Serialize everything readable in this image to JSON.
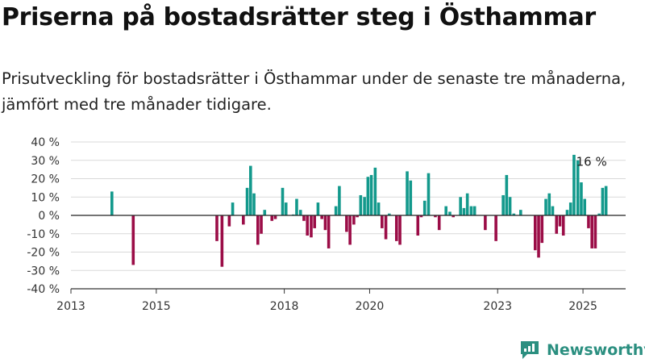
{
  "title": "Priserna på bostadsrätter steg i Östhammar",
  "subtitle": "Prisutveckling för bostadsrätter i Östhammar under de senaste tre månaderna, jämfört med tre månader tidigare.",
  "logo": {
    "text": "Newsworthy",
    "icon": "bar-chart-logo-icon"
  },
  "colors": {
    "positive": "#13998c",
    "negative": "#9b0d47",
    "grid": "#d9d9d9",
    "zero": "#222222",
    "logo": "#2b8f80"
  },
  "chart_data": {
    "type": "bar",
    "title": "Priserna på bostadsrätter steg i Östhammar",
    "xlabel": "",
    "ylabel": "",
    "unit": "%",
    "ylim": [
      -40,
      40
    ],
    "yticks": [
      40,
      30,
      20,
      10,
      0,
      -10,
      -20,
      -30,
      -40
    ],
    "ytick_labels": [
      "40 %",
      "30 %",
      "20 %",
      "10 %",
      "0 %",
      "-10 %",
      "-20 %",
      "-30 %",
      "-40 %"
    ],
    "xlim": [
      2013.0,
      2026.0
    ],
    "xticks": [
      2013,
      2015,
      2018,
      2020,
      2023,
      2025
    ],
    "xtick_labels": [
      "2013",
      "2015",
      "2018",
      "2020",
      "2023",
      "2025"
    ],
    "grid": true,
    "annotation": {
      "text": "16 %",
      "x": 2025.2,
      "y": 16
    },
    "points": [
      [
        2013.96,
        13
      ],
      [
        2014.46,
        -27
      ],
      [
        2016.42,
        -14
      ],
      [
        2016.54,
        -28
      ],
      [
        2016.71,
        -6
      ],
      [
        2016.79,
        7
      ],
      [
        2017.04,
        -5
      ],
      [
        2017.13,
        15
      ],
      [
        2017.21,
        27
      ],
      [
        2017.29,
        12
      ],
      [
        2017.38,
        -16
      ],
      [
        2017.46,
        -10
      ],
      [
        2017.54,
        3
      ],
      [
        2017.71,
        -3
      ],
      [
        2017.79,
        -2
      ],
      [
        2017.96,
        15
      ],
      [
        2018.04,
        7
      ],
      [
        2018.21,
        0.5
      ],
      [
        2018.29,
        9
      ],
      [
        2018.38,
        3
      ],
      [
        2018.46,
        -3
      ],
      [
        2018.54,
        -11
      ],
      [
        2018.63,
        -12
      ],
      [
        2018.71,
        -7
      ],
      [
        2018.79,
        7
      ],
      [
        2018.88,
        -2
      ],
      [
        2018.96,
        -8
      ],
      [
        2019.04,
        -18
      ],
      [
        2019.21,
        5
      ],
      [
        2019.29,
        16
      ],
      [
        2019.46,
        -9
      ],
      [
        2019.54,
        -16
      ],
      [
        2019.63,
        -5
      ],
      [
        2019.71,
        -1
      ],
      [
        2019.79,
        11
      ],
      [
        2019.88,
        10
      ],
      [
        2019.96,
        21
      ],
      [
        2020.04,
        22
      ],
      [
        2020.13,
        26
      ],
      [
        2020.21,
        7
      ],
      [
        2020.29,
        -7
      ],
      [
        2020.38,
        -13
      ],
      [
        2020.46,
        1
      ],
      [
        2020.63,
        -14
      ],
      [
        2020.71,
        -16
      ],
      [
        2020.88,
        24
      ],
      [
        2020.96,
        19
      ],
      [
        2021.13,
        -11
      ],
      [
        2021.21,
        -1
      ],
      [
        2021.29,
        8
      ],
      [
        2021.38,
        23
      ],
      [
        2021.54,
        -1
      ],
      [
        2021.63,
        -8
      ],
      [
        2021.79,
        5
      ],
      [
        2021.88,
        2
      ],
      [
        2021.96,
        -1
      ],
      [
        2022.13,
        10
      ],
      [
        2022.21,
        4
      ],
      [
        2022.29,
        12
      ],
      [
        2022.38,
        5
      ],
      [
        2022.46,
        5
      ],
      [
        2022.71,
        -8
      ],
      [
        2022.96,
        -14
      ],
      [
        2023.13,
        11
      ],
      [
        2023.21,
        22
      ],
      [
        2023.29,
        10
      ],
      [
        2023.38,
        1
      ],
      [
        2023.54,
        3
      ],
      [
        2023.88,
        -19
      ],
      [
        2023.96,
        -23
      ],
      [
        2024.04,
        -15
      ],
      [
        2024.13,
        9
      ],
      [
        2024.21,
        12
      ],
      [
        2024.29,
        5
      ],
      [
        2024.38,
        -10
      ],
      [
        2024.46,
        -6
      ],
      [
        2024.54,
        -11
      ],
      [
        2024.63,
        3
      ],
      [
        2024.71,
        7
      ],
      [
        2024.79,
        33
      ],
      [
        2024.88,
        30
      ],
      [
        2024.96,
        18
      ],
      [
        2025.04,
        9
      ],
      [
        2025.13,
        -7
      ],
      [
        2025.21,
        -18
      ],
      [
        2025.29,
        -18
      ],
      [
        2025.38,
        1
      ],
      [
        2025.46,
        15
      ],
      [
        2025.54,
        16
      ]
    ]
  }
}
